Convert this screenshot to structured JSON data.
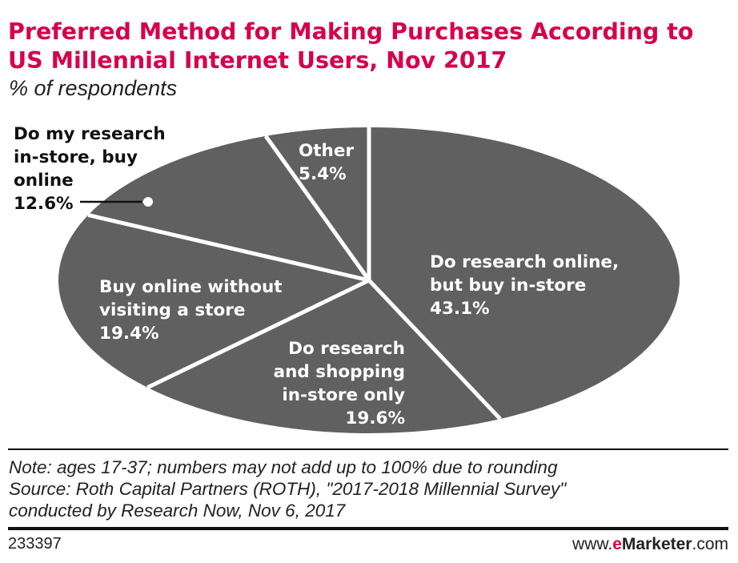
{
  "header": {
    "title": "Preferred Method for Making Purchases According to US Millennial Internet Users, Nov 2017",
    "subtitle": "% of respondents"
  },
  "chart_data": {
    "type": "pie",
    "slices": [
      {
        "label": "Do research online, but buy in-store",
        "value": 43.1,
        "value_label": "43.1%",
        "color": "#606060",
        "label_lines": [
          "Do research online,",
          "but buy in-store"
        ]
      },
      {
        "label": "Do research and shopping in-store only",
        "value": 19.6,
        "value_label": "19.6%",
        "color": "#606060",
        "label_lines": [
          "Do research",
          "and shopping",
          "in-store only"
        ]
      },
      {
        "label": "Buy online without visiting a store",
        "value": 19.4,
        "value_label": "19.4%",
        "color": "#606060",
        "label_lines": [
          "Buy online without",
          "visiting a store"
        ]
      },
      {
        "label": "Do my research in-store, buy online",
        "value": 12.6,
        "value_label": "12.6%",
        "color": "#606060",
        "label_lines": [
          "Do my research",
          "in-store, buy",
          "online"
        ]
      },
      {
        "label": "Other",
        "value": 5.4,
        "value_label": "5.4%",
        "color": "#606060",
        "label_lines": [
          "Other"
        ]
      }
    ],
    "slice_color": "#606060",
    "separator_color": "#ffffff",
    "legend": "none"
  },
  "footer": {
    "note": "Note: ages 17-37; numbers may not add up to 100% due to rounding",
    "source_line1": "Source: Roth Capital Partners (ROTH), \"2017-2018 Millennial Survey\"",
    "source_line2": "conducted by Research Now, Nov 6, 2017",
    "chart_id": "233397",
    "brand_prefix": "www.",
    "brand_e": "e",
    "brand_marketer": "Marketer",
    "brand_suffix": ".com"
  },
  "colors": {
    "accent": "#d6004c",
    "text": "#111111"
  }
}
